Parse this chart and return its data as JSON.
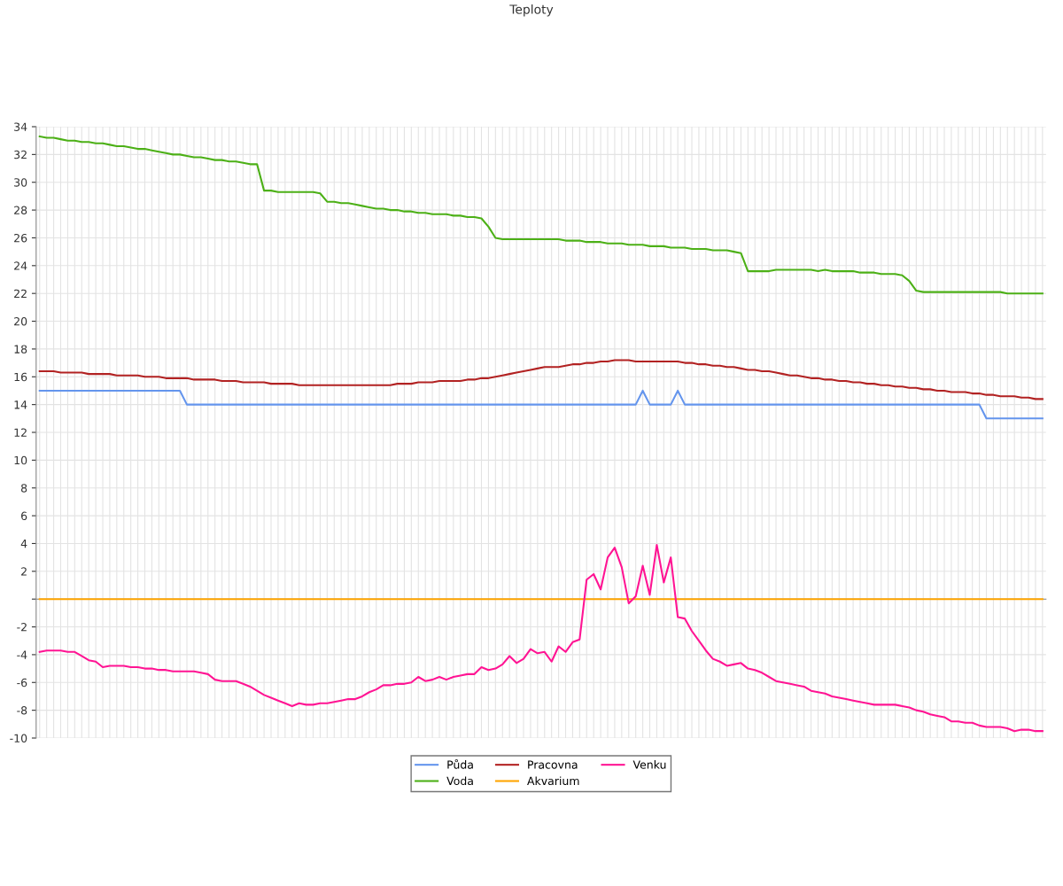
{
  "chart_data": {
    "type": "line",
    "title": "Teploty",
    "categories": [
      null,
      null,
      null,
      null,
      null,
      null,
      null,
      null,
      null,
      null,
      null,
      null,
      null,
      null,
      null,
      null,
      null,
      null,
      null,
      null,
      null,
      null,
      null,
      null,
      null,
      null,
      null,
      null,
      null,
      null,
      null,
      null,
      null,
      null,
      null,
      null,
      null,
      null,
      null,
      null,
      null,
      null,
      null,
      null,
      null,
      null,
      null,
      null,
      null,
      null,
      null,
      null,
      null,
      null,
      null,
      null,
      null,
      null,
      null,
      null,
      null,
      null,
      null,
      null,
      null,
      null,
      null,
      null,
      null,
      null,
      null,
      null,
      null,
      null,
      null,
      null,
      null,
      null,
      null,
      null,
      null,
      null,
      null,
      null,
      null,
      null,
      null,
      null,
      null,
      null,
      null,
      null,
      null,
      null,
      null,
      null,
      null,
      null,
      null,
      null,
      null,
      null,
      null,
      null,
      null,
      null,
      null,
      null,
      null,
      null,
      null,
      null,
      null,
      null,
      null,
      null,
      null,
      null,
      null,
      null,
      null,
      null,
      null,
      null,
      null,
      null,
      null,
      null,
      null,
      null,
      null,
      null,
      null,
      null,
      null,
      null,
      null,
      null,
      null,
      null,
      null,
      null,
      null,
      null
    ],
    "series": [
      {
        "name": "Půda",
        "color": "#6495ed",
        "values": [
          15,
          15,
          15,
          15,
          15,
          15,
          15,
          15,
          15,
          15,
          15,
          15,
          15,
          15,
          15,
          15,
          15,
          15,
          15,
          15,
          15,
          14,
          14,
          14,
          14,
          14,
          14,
          14,
          14,
          14,
          14,
          14,
          14,
          14,
          14,
          14,
          14,
          14,
          14,
          14,
          14,
          14,
          14,
          14,
          14,
          14,
          14,
          14,
          14,
          14,
          14,
          14,
          14,
          14,
          14,
          14,
          14,
          14,
          14,
          14,
          14,
          14,
          14,
          14,
          14,
          14,
          14,
          14,
          14,
          14,
          14,
          14,
          14,
          14,
          14,
          14,
          14,
          14,
          14,
          14,
          14,
          14,
          14,
          14,
          14,
          14,
          15,
          14,
          14,
          14,
          14,
          15,
          14,
          14,
          14,
          14,
          14,
          14,
          14,
          14,
          14,
          14,
          14,
          14,
          14,
          14,
          14,
          14,
          14,
          14,
          14,
          14,
          14,
          14,
          14,
          14,
          14,
          14,
          14,
          14,
          14,
          14,
          14,
          14,
          14,
          14,
          14,
          14,
          14,
          14,
          14,
          14,
          14,
          14,
          14,
          13,
          13,
          13,
          13,
          13,
          13,
          13,
          13,
          13
        ]
      },
      {
        "name": "Voda",
        "color": "#4cb016",
        "values": [
          33.3,
          33.2,
          33.2,
          33.1,
          33.0,
          33.0,
          32.9,
          32.9,
          32.8,
          32.8,
          32.7,
          32.6,
          32.6,
          32.5,
          32.4,
          32.4,
          32.3,
          32.2,
          32.1,
          32.0,
          32.0,
          31.9,
          31.8,
          31.8,
          31.7,
          31.6,
          31.6,
          31.5,
          31.5,
          31.4,
          31.3,
          31.3,
          29.4,
          29.4,
          29.3,
          29.3,
          29.3,
          29.3,
          29.3,
          29.3,
          29.2,
          28.6,
          28.6,
          28.5,
          28.5,
          28.4,
          28.3,
          28.2,
          28.1,
          28.1,
          28.0,
          28.0,
          27.9,
          27.9,
          27.8,
          27.8,
          27.7,
          27.7,
          27.7,
          27.6,
          27.6,
          27.5,
          27.5,
          27.4,
          26.8,
          26.0,
          25.9,
          25.9,
          25.9,
          25.9,
          25.9,
          25.9,
          25.9,
          25.9,
          25.9,
          25.8,
          25.8,
          25.8,
          25.7,
          25.7,
          25.7,
          25.6,
          25.6,
          25.6,
          25.5,
          25.5,
          25.5,
          25.4,
          25.4,
          25.4,
          25.3,
          25.3,
          25.3,
          25.2,
          25.2,
          25.2,
          25.1,
          25.1,
          25.1,
          25.0,
          24.9,
          23.6,
          23.6,
          23.6,
          23.6,
          23.7,
          23.7,
          23.7,
          23.7,
          23.7,
          23.7,
          23.6,
          23.7,
          23.6,
          23.6,
          23.6,
          23.6,
          23.5,
          23.5,
          23.5,
          23.4,
          23.4,
          23.4,
          23.3,
          22.9,
          22.2,
          22.1,
          22.1,
          22.1,
          22.1,
          22.1,
          22.1,
          22.1,
          22.1,
          22.1,
          22.1,
          22.1,
          22.1,
          22.0,
          22.0,
          22.0,
          22.0,
          22.0,
          22.0
        ]
      },
      {
        "name": "Pracovna",
        "color": "#b22222",
        "values": [
          16.4,
          16.4,
          16.4,
          16.3,
          16.3,
          16.3,
          16.3,
          16.2,
          16.2,
          16.2,
          16.2,
          16.1,
          16.1,
          16.1,
          16.1,
          16.0,
          16.0,
          16.0,
          15.9,
          15.9,
          15.9,
          15.9,
          15.8,
          15.8,
          15.8,
          15.8,
          15.7,
          15.7,
          15.7,
          15.6,
          15.6,
          15.6,
          15.6,
          15.5,
          15.5,
          15.5,
          15.5,
          15.4,
          15.4,
          15.4,
          15.4,
          15.4,
          15.4,
          15.4,
          15.4,
          15.4,
          15.4,
          15.4,
          15.4,
          15.4,
          15.4,
          15.5,
          15.5,
          15.5,
          15.6,
          15.6,
          15.6,
          15.7,
          15.7,
          15.7,
          15.7,
          15.8,
          15.8,
          15.9,
          15.9,
          16.0,
          16.1,
          16.2,
          16.3,
          16.4,
          16.5,
          16.6,
          16.7,
          16.7,
          16.7,
          16.8,
          16.9,
          16.9,
          17.0,
          17.0,
          17.1,
          17.1,
          17.2,
          17.2,
          17.2,
          17.1,
          17.1,
          17.1,
          17.1,
          17.1,
          17.1,
          17.1,
          17.0,
          17.0,
          16.9,
          16.9,
          16.8,
          16.8,
          16.7,
          16.7,
          16.6,
          16.5,
          16.5,
          16.4,
          16.4,
          16.3,
          16.2,
          16.1,
          16.1,
          16.0,
          15.9,
          15.9,
          15.8,
          15.8,
          15.7,
          15.7,
          15.6,
          15.6,
          15.5,
          15.5,
          15.4,
          15.4,
          15.3,
          15.3,
          15.2,
          15.2,
          15.1,
          15.1,
          15.0,
          15.0,
          14.9,
          14.9,
          14.9,
          14.8,
          14.8,
          14.7,
          14.7,
          14.6,
          14.6,
          14.6,
          14.5,
          14.5,
          14.4,
          14.4
        ]
      },
      {
        "name": "Akvarium",
        "color": "#ffa500",
        "values": [
          0,
          0,
          0,
          0,
          0,
          0,
          0,
          0,
          0,
          0,
          0,
          0,
          0,
          0,
          0,
          0,
          0,
          0,
          0,
          0,
          0,
          0,
          0,
          0,
          0,
          0,
          0,
          0,
          0,
          0,
          0,
          0,
          0,
          0,
          0,
          0,
          0,
          0,
          0,
          0,
          0,
          0,
          0,
          0,
          0,
          0,
          0,
          0,
          0,
          0,
          0,
          0,
          0,
          0,
          0,
          0,
          0,
          0,
          0,
          0,
          0,
          0,
          0,
          0,
          0,
          0,
          0,
          0,
          0,
          0,
          0,
          0,
          0,
          0,
          0,
          0,
          0,
          0,
          0,
          0,
          0,
          0,
          0,
          0,
          0,
          0,
          0,
          0,
          0,
          0,
          0,
          0,
          0,
          0,
          0,
          0,
          0,
          0,
          0,
          0,
          0,
          0,
          0,
          0,
          0,
          0,
          0,
          0,
          0,
          0,
          0,
          0,
          0,
          0,
          0,
          0,
          0,
          0,
          0,
          0,
          0,
          0,
          0,
          0,
          0,
          0,
          0,
          0,
          0,
          0,
          0,
          0,
          0,
          0,
          0,
          0,
          0,
          0,
          0,
          0,
          0,
          0,
          0,
          0
        ]
      },
      {
        "name": "Venku",
        "color": "#ff1493",
        "values": [
          -3.8,
          -3.7,
          -3.7,
          -3.7,
          -3.8,
          -3.8,
          -4.1,
          -4.4,
          -4.5,
          -4.9,
          -4.8,
          -4.8,
          -4.8,
          -4.9,
          -4.9,
          -5.0,
          -5.0,
          -5.1,
          -5.1,
          -5.2,
          -5.2,
          -5.2,
          -5.2,
          -5.3,
          -5.4,
          -5.8,
          -5.9,
          -5.9,
          -5.9,
          -6.1,
          -6.3,
          -6.6,
          -6.9,
          -7.1,
          -7.3,
          -7.5,
          -7.7,
          -7.5,
          -7.6,
          -7.6,
          -7.5,
          -7.5,
          -7.4,
          -7.3,
          -7.2,
          -7.2,
          -7.0,
          -6.7,
          -6.5,
          -6.2,
          -6.2,
          -6.1,
          -6.1,
          -6.0,
          -5.6,
          -5.9,
          -5.8,
          -5.6,
          -5.8,
          -5.6,
          -5.5,
          -5.4,
          -5.4,
          -4.9,
          -5.1,
          -5.0,
          -4.7,
          -4.1,
          -4.6,
          -4.3,
          -3.6,
          -3.9,
          -3.8,
          -4.5,
          -3.4,
          -3.8,
          -3.1,
          -2.9,
          1.4,
          1.8,
          0.7,
          3.0,
          3.7,
          2.3,
          -0.3,
          0.2,
          2.4,
          0.3,
          3.9,
          1.2,
          3.0,
          -1.3,
          -1.4,
          -2.3,
          -3.0,
          -3.7,
          -4.3,
          -4.5,
          -4.8,
          -4.7,
          -4.6,
          -5.0,
          -5.1,
          -5.3,
          -5.6,
          -5.9,
          -6.0,
          -6.1,
          -6.2,
          -6.3,
          -6.6,
          -6.7,
          -6.8,
          -7.0,
          -7.1,
          -7.2,
          -7.3,
          -7.4,
          -7.5,
          -7.6,
          -7.6,
          -7.6,
          -7.6,
          -7.7,
          -7.8,
          -8.0,
          -8.1,
          -8.3,
          -8.4,
          -8.5,
          -8.8,
          -8.8,
          -8.9,
          -8.9,
          -9.1,
          -9.2,
          -9.2,
          -9.2,
          -9.3,
          -9.5,
          -9.4,
          -9.4,
          -9.5,
          -9.5
        ]
      }
    ],
    "ylim": [
      -10,
      34
    ],
    "yticks": [
      -10,
      -8,
      -6,
      -4,
      -2,
      {
        "value": 0,
        "label": null
      },
      2,
      4,
      6,
      8,
      10,
      12,
      14,
      16,
      18,
      20,
      22,
      24,
      26,
      28,
      30,
      32,
      34
    ],
    "grid": true,
    "legend": "bottom",
    "marker": "none",
    "line_style": "solid"
  }
}
